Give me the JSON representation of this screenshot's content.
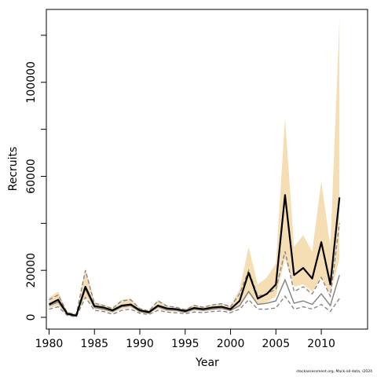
{
  "chart_data": {
    "type": "line",
    "title": "",
    "xlabel": "Year",
    "ylabel": "Recruits",
    "xlim": [
      1979.7,
      2015.1
    ],
    "ylim": [
      -5000,
      131000
    ],
    "x_ticks": [
      1980,
      1985,
      1990,
      1995,
      2000,
      2005,
      2010
    ],
    "y_ticks": [
      0,
      20000,
      40000,
      60000,
      80000,
      100000,
      120000
    ],
    "y_tick_labels": [
      "0",
      "20000",
      "",
      "60000",
      "",
      "100000",
      ""
    ],
    "grid": false,
    "legend": "none",
    "colors": {
      "median": "#000000",
      "interval_fill": "#f5deb3",
      "secondary_line": "#808080",
      "secondary_dashed": "#808080",
      "frame": "#000000"
    },
    "x": [
      1980,
      1981,
      1982,
      1983,
      1984,
      1985,
      1986,
      1987,
      1988,
      1989,
      1990,
      1991,
      1992,
      1993,
      1994,
      1995,
      1996,
      1997,
      1998,
      1999,
      2000,
      2001,
      2002,
      2003,
      2004,
      2005,
      2006,
      2007,
      2008,
      2009,
      2010,
      2011,
      2012
    ],
    "series": [
      {
        "role": "interval",
        "style": "filled-band",
        "upper": [
          8500,
          11000,
          2500,
          1500,
          21000,
          6500,
          5500,
          4000,
          7500,
          8000,
          4000,
          3000,
          7500,
          5000,
          4500,
          3500,
          5500,
          4500,
          5500,
          6000,
          5000,
          12000,
          30000,
          14000,
          17000,
          23000,
          85000,
          30000,
          35000,
          28000,
          58000,
          30000,
          127000
        ],
        "lower": [
          4000,
          5000,
          800,
          300,
          9000,
          3500,
          2800,
          1800,
          3500,
          4000,
          2000,
          1500,
          3500,
          2500,
          2500,
          1800,
          2800,
          2500,
          3000,
          3500,
          2500,
          4500,
          10000,
          5500,
          6500,
          9000,
          25000,
          13000,
          14000,
          11000,
          17000,
          10000,
          25000
        ]
      },
      {
        "role": "median",
        "style": "solid-thick",
        "values": [
          5500,
          7500,
          1500,
          700,
          13000,
          4800,
          4200,
          3000,
          5000,
          5500,
          3000,
          2200,
          5000,
          3800,
          3500,
          2700,
          4000,
          3500,
          4200,
          4500,
          3500,
          7000,
          19000,
          8000,
          10000,
          14000,
          52000,
          18000,
          21000,
          16500,
          32000,
          14000,
          51000
        ]
      },
      {
        "role": "secondary",
        "style": "solid-gray",
        "values": [
          5000,
          6500,
          1300,
          500,
          12000,
          4200,
          3500,
          2500,
          4500,
          5000,
          2500,
          1800,
          4500,
          3200,
          3000,
          2200,
          3500,
          3000,
          3500,
          3800,
          3000,
          5000,
          11000,
          5500,
          6000,
          7000,
          16000,
          6000,
          7000,
          5500,
          10000,
          5000,
          18000
        ]
      },
      {
        "role": "secondary-upper",
        "style": "dashed-gray",
        "values": [
          7500,
          9500,
          2000,
          1200,
          20000,
          6000,
          5000,
          3800,
          7000,
          7500,
          3700,
          2700,
          7000,
          4800,
          4300,
          3300,
          5000,
          4300,
          5300,
          5800,
          4500,
          10000,
          20000,
          9000,
          10000,
          12000,
          28000,
          11000,
          13000,
          10000,
          17000,
          9000,
          40000
        ]
      },
      {
        "role": "secondary-lower",
        "style": "dashed-gray",
        "values": [
          3500,
          4500,
          800,
          200,
          8500,
          3000,
          2500,
          1300,
          3000,
          3500,
          1700,
          1200,
          3000,
          2200,
          2000,
          1500,
          2300,
          2000,
          2500,
          2700,
          2000,
          3500,
          7500,
          3500,
          3500,
          4000,
          9000,
          3500,
          4500,
          3500,
          5500,
          2500,
          8000
        ]
      }
    ]
  },
  "footer_text": "stockassessment.org, Mack-all-data, r2024"
}
